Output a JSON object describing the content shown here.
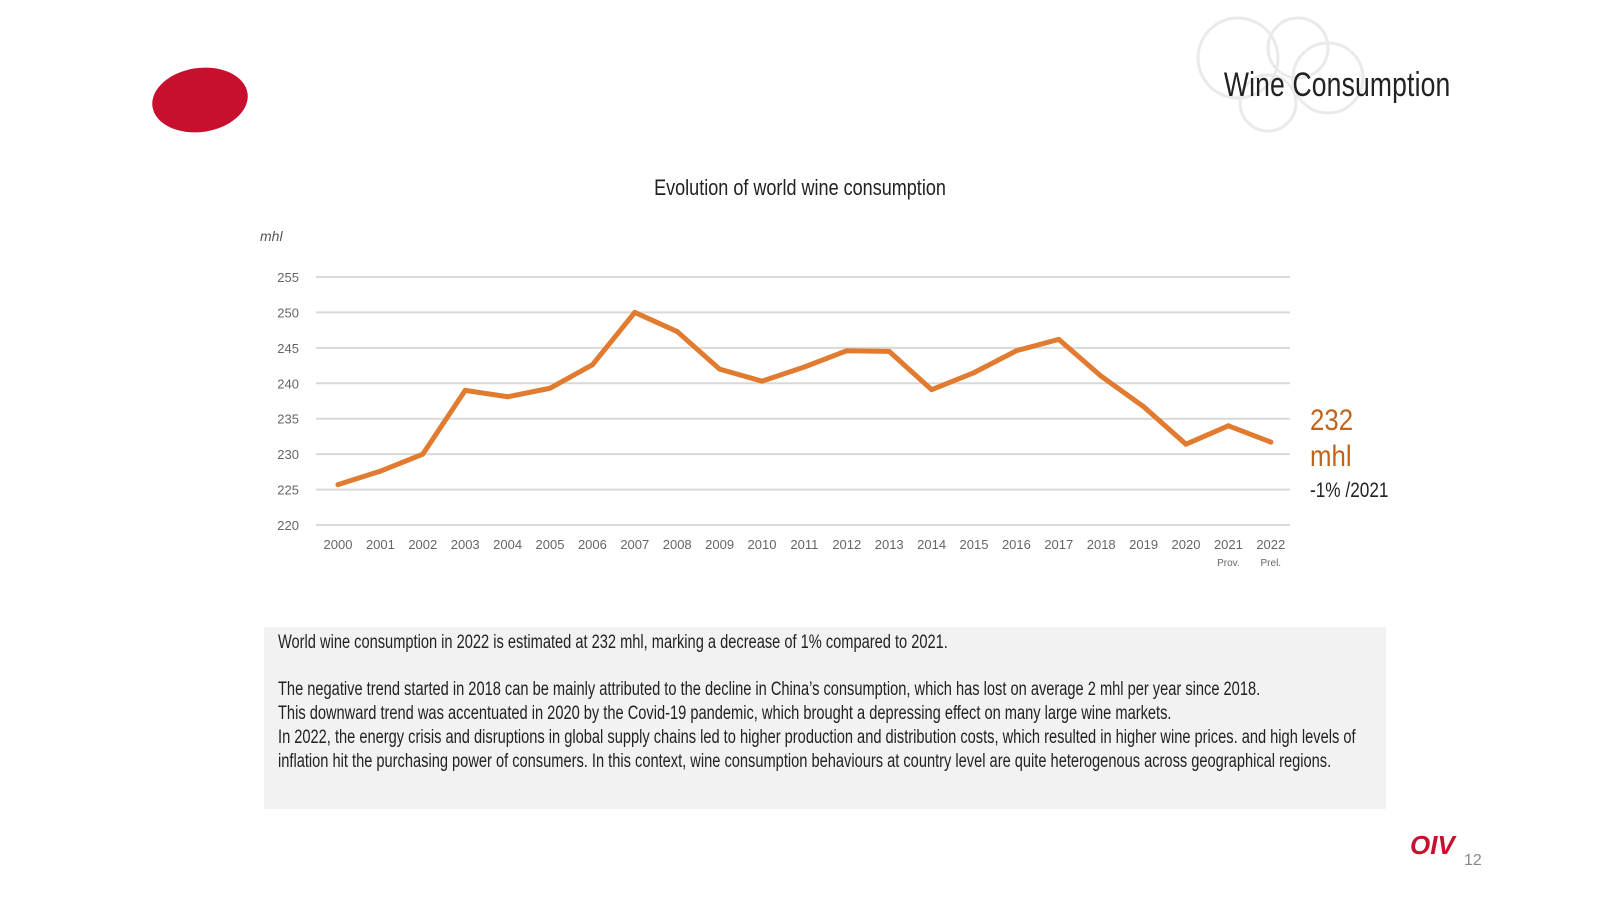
{
  "header": {
    "title": "Wine  Consumption"
  },
  "chart_data": {
    "type": "line",
    "title": "Evolution of world wine consumption",
    "ylabel": "mhl",
    "xlabel": "",
    "ylim": [
      220,
      255
    ],
    "yticks": [
      220,
      225,
      230,
      235,
      240,
      245,
      250,
      255
    ],
    "grid": true,
    "categories": [
      "2000",
      "2001",
      "2002",
      "2003",
      "2004",
      "2005",
      "2006",
      "2007",
      "2008",
      "2009",
      "2010",
      "2011",
      "2012",
      "2013",
      "2014",
      "2015",
      "2016",
      "2017",
      "2018",
      "2019",
      "2020",
      "2021",
      "2022"
    ],
    "category_notes": {
      "2021": "Prov.",
      "2022": "Prel."
    },
    "series": [
      {
        "name": "World wine consumption",
        "color": "#e07b2f",
        "values": [
          225.7,
          227.6,
          230.0,
          239.0,
          238.1,
          239.3,
          242.6,
          250.0,
          247.3,
          242.0,
          240.3,
          242.3,
          244.6,
          244.5,
          239.1,
          241.5,
          244.6,
          246.2,
          241.0,
          236.7,
          231.4,
          234.0,
          231.7
        ]
      }
    ]
  },
  "callout": {
    "value_line1": "232",
    "value_line2": "mhl",
    "change": "-1% /2021",
    "color": "#c0641c"
  },
  "summary": {
    "p1": "World wine consumption in 2022 is estimated at 232 mhl, marking a decrease of 1% compared to 2021.",
    "p2": "The negative trend started in 2018 can be mainly attributed to the decline in China’s consumption, which has lost on average 2 mhl per year since 2018.",
    "p3": "This downward trend was accentuated in 2020 by the Covid-19 pandemic, which brought a depressing effect on many large wine markets.",
    "p4": "In 2022, the energy crisis and disruptions in global supply chains led to higher production and distribution costs, which resulted in higher wine prices. and high levels of inflation hit the purchasing power of consumers. In this context, wine consumption behaviours at country level are quite heterogenous across geographical regions."
  },
  "footer": {
    "logo_text": "OIV",
    "page_number": "12"
  },
  "colors": {
    "brand_red": "#c8102e",
    "line_orange": "#e07b2f",
    "grid": "#d9d9d9"
  }
}
